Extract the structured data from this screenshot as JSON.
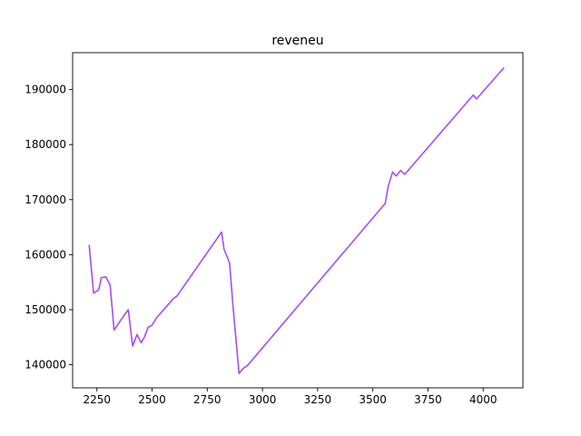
{
  "chart_data": {
    "type": "line",
    "title": "reveneu",
    "xlabel": "",
    "ylabel": "",
    "xlim": [
      2140,
      4180
    ],
    "ylim": [
      135800,
      196700
    ],
    "xticks": [
      2250,
      2500,
      2750,
      3000,
      3250,
      3500,
      3750,
      4000
    ],
    "yticks": [
      140000,
      150000,
      160000,
      170000,
      180000,
      190000
    ],
    "grid": false,
    "line_color": "#a64df5",
    "series": [
      {
        "x": [
          2215,
          2235,
          2258,
          2270,
          2290,
          2310,
          2328,
          2348,
          2372,
          2392,
          2412,
          2432,
          2450,
          2465,
          2482,
          2500,
          2520,
          2596,
          2613,
          2815,
          2826,
          2851,
          2866,
          2894,
          2912,
          2933,
          3556,
          3570,
          3590,
          3606,
          3627,
          3645,
          3955,
          3970,
          4095
        ],
        "y": [
          161800,
          153000,
          153600,
          155800,
          156000,
          154500,
          146300,
          147500,
          148900,
          150000,
          143400,
          145500,
          144000,
          145000,
          146800,
          147200,
          148500,
          152000,
          152500,
          164100,
          161000,
          158500,
          151000,
          138400,
          139300,
          139900,
          169300,
          172500,
          175000,
          174300,
          175300,
          174600,
          189000,
          188300,
          194000
        ]
      }
    ]
  }
}
